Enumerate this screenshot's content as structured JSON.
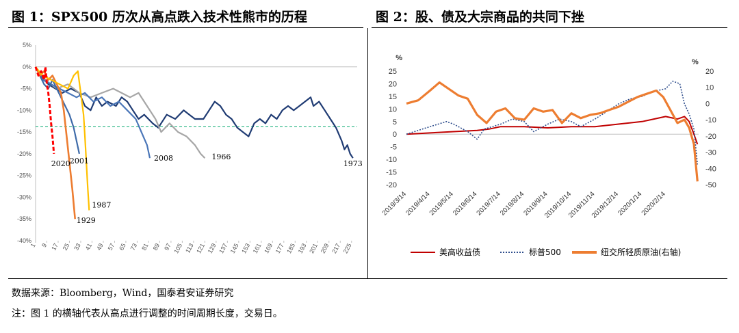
{
  "figure1": {
    "title": "图 1：SPX500 历次从高点跌入技术性熊市的历程",
    "chart_data": {
      "type": "line",
      "title": "图 1：SPX500 历次从高点跌入技术性熊市的历程",
      "xlabel": "",
      "ylabel": "",
      "xlim": [
        1,
        229
      ],
      "ylim": [
        -40,
        5
      ],
      "x_ticks": [
        "1",
        "9",
        "17",
        "25",
        "33",
        "41",
        "49",
        "57",
        "65",
        "73",
        "81",
        "89",
        "97",
        "105",
        "113",
        "121",
        "129",
        "137",
        "145",
        "153",
        "161",
        "169",
        "177",
        "185",
        "193",
        "201",
        "209",
        "217",
        "225"
      ],
      "y_ticks": [
        5,
        0,
        -5,
        -10,
        -15,
        -20,
        -25,
        -30,
        -35,
        -40
      ],
      "y_tick_labels": [
        "5%",
        "0%",
        "-5%",
        "-10%",
        "-15%",
        "-20%",
        "-25%",
        "-30%",
        "-35%",
        "-40%"
      ],
      "reference_line": {
        "y": -13.8,
        "color": "#00a86b",
        "style": "dashed"
      },
      "series": [
        {
          "name": "1973",
          "color": "#1f3b73",
          "width": 2.2,
          "points": [
            [
              1,
              0
            ],
            [
              5,
              -2
            ],
            [
              10,
              -4
            ],
            [
              15,
              -5
            ],
            [
              20,
              -6
            ],
            [
              26,
              -5
            ],
            [
              32,
              -6
            ],
            [
              36,
              -9
            ],
            [
              40,
              -10
            ],
            [
              44,
              -7
            ],
            [
              48,
              -9
            ],
            [
              52,
              -8
            ],
            [
              58,
              -9
            ],
            [
              62,
              -7
            ],
            [
              66,
              -8
            ],
            [
              70,
              -10
            ],
            [
              74,
              -12
            ],
            [
              78,
              -11
            ],
            [
              84,
              -13
            ],
            [
              88,
              -14
            ],
            [
              94,
              -11
            ],
            [
              100,
              -12
            ],
            [
              106,
              -10
            ],
            [
              110,
              -11
            ],
            [
              114,
              -12
            ],
            [
              120,
              -12
            ],
            [
              124,
              -10
            ],
            [
              128,
              -8
            ],
            [
              132,
              -9
            ],
            [
              136,
              -11
            ],
            [
              140,
              -12
            ],
            [
              144,
              -14
            ],
            [
              148,
              -15
            ],
            [
              152,
              -16
            ],
            [
              156,
              -13
            ],
            [
              160,
              -12
            ],
            [
              164,
              -13
            ],
            [
              168,
              -11
            ],
            [
              172,
              -12
            ],
            [
              176,
              -10
            ],
            [
              180,
              -9
            ],
            [
              184,
              -10
            ],
            [
              188,
              -9
            ],
            [
              192,
              -8
            ],
            [
              196,
              -7
            ],
            [
              198,
              -9
            ],
            [
              202,
              -8
            ],
            [
              206,
              -10
            ],
            [
              210,
              -12
            ],
            [
              214,
              -14
            ],
            [
              218,
              -17
            ],
            [
              220,
              -19
            ],
            [
              222,
              -18
            ],
            [
              224,
              -20
            ],
            [
              226,
              -21
            ]
          ],
          "end_label": "1973"
        },
        {
          "name": "1966",
          "color": "#a6a6a6",
          "width": 2.2,
          "points": [
            [
              1,
              0
            ],
            [
              8,
              -3
            ],
            [
              16,
              -5
            ],
            [
              24,
              -4
            ],
            [
              32,
              -6
            ],
            [
              40,
              -7
            ],
            [
              48,
              -6
            ],
            [
              56,
              -5
            ],
            [
              62,
              -6
            ],
            [
              68,
              -7
            ],
            [
              74,
              -6
            ],
            [
              80,
              -9
            ],
            [
              86,
              -12
            ],
            [
              90,
              -15
            ],
            [
              96,
              -13
            ],
            [
              102,
              -15
            ],
            [
              108,
              -16
            ],
            [
              114,
              -18
            ],
            [
              118,
              -20
            ],
            [
              121,
              -21
            ]
          ],
          "end_label": "1966"
        },
        {
          "name": "2008",
          "color": "#4a76b8",
          "width": 2.2,
          "points": [
            [
              1,
              0
            ],
            [
              6,
              -3
            ],
            [
              12,
              -4
            ],
            [
              18,
              -5
            ],
            [
              24,
              -6
            ],
            [
              30,
              -7
            ],
            [
              36,
              -6
            ],
            [
              42,
              -8
            ],
            [
              48,
              -7
            ],
            [
              54,
              -9
            ],
            [
              60,
              -8
            ],
            [
              66,
              -10
            ],
            [
              72,
              -12
            ],
            [
              76,
              -15
            ],
            [
              80,
              -18
            ],
            [
              82,
              -21
            ]
          ],
          "end_label": "2008"
        },
        {
          "name": "2001",
          "color": "#3d6aa8",
          "width": 2.2,
          "points": [
            [
              1,
              0
            ],
            [
              4,
              -2
            ],
            [
              7,
              -4
            ],
            [
              10,
              -5
            ],
            [
              13,
              -3
            ],
            [
              16,
              -5
            ],
            [
              19,
              -7
            ],
            [
              22,
              -9
            ],
            [
              25,
              -11
            ],
            [
              28,
              -14
            ],
            [
              30,
              -17
            ],
            [
              32,
              -20
            ]
          ],
          "end_label": "2001"
        },
        {
          "name": "1929",
          "color": "#ed7d31",
          "width": 2.6,
          "points": [
            [
              1,
              0
            ],
            [
              4,
              -2
            ],
            [
              7,
              -1
            ],
            [
              10,
              -3
            ],
            [
              13,
              -2
            ],
            [
              16,
              -4
            ],
            [
              19,
              -6
            ],
            [
              21,
              -10
            ],
            [
              23,
              -16
            ],
            [
              25,
              -22
            ],
            [
              27,
              -28
            ],
            [
              29,
              -35
            ]
          ],
          "end_label": "1929"
        },
        {
          "name": "1987",
          "color": "#ffc000",
          "width": 2.2,
          "points": [
            [
              1,
              0
            ],
            [
              6,
              -2
            ],
            [
              12,
              -3
            ],
            [
              18,
              -4
            ],
            [
              24,
              -5
            ],
            [
              28,
              -2
            ],
            [
              31,
              -1
            ],
            [
              33,
              -6
            ],
            [
              35,
              -11
            ],
            [
              36,
              -16
            ],
            [
              37,
              -22
            ],
            [
              38,
              -28
            ],
            [
              39,
              -33
            ]
          ],
          "end_label": "1987"
        },
        {
          "name": "2020",
          "color": "#ff0000",
          "width": 3,
          "dashed": true,
          "points": [
            [
              1,
              0
            ],
            [
              3,
              -2
            ],
            [
              5,
              -1
            ],
            [
              7,
              -3
            ],
            [
              8,
              0
            ],
            [
              9,
              -4
            ],
            [
              10,
              -6
            ],
            [
              11,
              -9
            ],
            [
              12,
              -13
            ],
            [
              13,
              -16
            ],
            [
              14,
              -20
            ]
          ],
          "end_label": "2020"
        }
      ]
    }
  },
  "figure2": {
    "title": "图 2：股、债及大宗商品的共同下挫",
    "chart_data": {
      "type": "line",
      "title": "图 2：股、债及大宗商品的共同下挫",
      "left_axis": {
        "unit": "%",
        "ylim": [
          -20,
          25
        ],
        "ticks": [
          25,
          20,
          15,
          10,
          5,
          0,
          -5,
          -10,
          -15,
          -20
        ]
      },
      "right_axis": {
        "unit": "%",
        "ylim": [
          -50,
          20
        ],
        "ticks": [
          20,
          10,
          0,
          -10,
          -20,
          -30,
          -40,
          -50
        ]
      },
      "x_tick_labels": [
        "2019/3/14",
        "2019/4/14",
        "2019/5/14",
        "2019/6/14",
        "2019/7/14",
        "2019/8/14",
        "2019/9/14",
        "2019/10/14",
        "2019/11/14",
        "2019/12/14",
        "2020/1/14",
        "2020/2/14"
      ],
      "x_range_months": [
        0,
        12.4
      ],
      "legend_position": "bottom",
      "series": [
        {
          "name": "美高收益债",
          "color": "#c00000",
          "style": "solid",
          "axis": "left",
          "points": [
            [
              0,
              0
            ],
            [
              1,
              0.5
            ],
            [
              2,
              1
            ],
            [
              3,
              1.5
            ],
            [
              3.5,
              2
            ],
            [
              4,
              3
            ],
            [
              5,
              3
            ],
            [
              6,
              2.5
            ],
            [
              7,
              3
            ],
            [
              8,
              3
            ],
            [
              9,
              4
            ],
            [
              10,
              5
            ],
            [
              10.5,
              6
            ],
            [
              11,
              7
            ],
            [
              11.5,
              6
            ],
            [
              11.8,
              7
            ],
            [
              12,
              5
            ],
            [
              12.2,
              0
            ],
            [
              12.35,
              -4
            ]
          ]
        },
        {
          "name": "标普500",
          "color": "#2e4d8c",
          "style": "dotted",
          "axis": "left",
          "points": [
            [
              0,
              0
            ],
            [
              1,
              3
            ],
            [
              1.7,
              5
            ],
            [
              2,
              4
            ],
            [
              2.6,
              1
            ],
            [
              3,
              -2
            ],
            [
              3.3,
              2
            ],
            [
              4,
              4
            ],
            [
              4.5,
              6
            ],
            [
              5,
              5
            ],
            [
              5.4,
              1
            ],
            [
              6,
              4
            ],
            [
              6.5,
              6
            ],
            [
              7,
              5
            ],
            [
              7.4,
              3
            ],
            [
              8,
              6
            ],
            [
              8.5,
              9
            ],
            [
              9,
              12
            ],
            [
              9.5,
              14
            ],
            [
              10,
              15
            ],
            [
              10.5,
              17
            ],
            [
              11,
              18
            ],
            [
              11.3,
              21
            ],
            [
              11.6,
              20
            ],
            [
              11.8,
              12
            ],
            [
              12,
              8
            ],
            [
              12.2,
              2
            ],
            [
              12.35,
              -12
            ]
          ]
        },
        {
          "name": "纽交所轻质原油(右轴)",
          "color": "#ed7d31",
          "style": "solid",
          "axis": "right",
          "points": [
            [
              0,
              0
            ],
            [
              0.5,
              2
            ],
            [
              1,
              8
            ],
            [
              1.4,
              13
            ],
            [
              1.8,
              9
            ],
            [
              2.2,
              5
            ],
            [
              2.6,
              3
            ],
            [
              3,
              -7
            ],
            [
              3.4,
              -12
            ],
            [
              3.8,
              -5
            ],
            [
              4.2,
              -3
            ],
            [
              4.6,
              -9
            ],
            [
              5,
              -10
            ],
            [
              5.4,
              -3
            ],
            [
              5.8,
              -5
            ],
            [
              6.2,
              -4
            ],
            [
              6.6,
              -12
            ],
            [
              7,
              -6
            ],
            [
              7.4,
              -9
            ],
            [
              7.8,
              -7
            ],
            [
              8.2,
              -6
            ],
            [
              8.6,
              -4
            ],
            [
              9,
              -2
            ],
            [
              9.4,
              1
            ],
            [
              9.8,
              4
            ],
            [
              10.2,
              6
            ],
            [
              10.6,
              8
            ],
            [
              10.9,
              4
            ],
            [
              11.2,
              -4
            ],
            [
              11.5,
              -12
            ],
            [
              11.8,
              -10
            ],
            [
              12,
              -15
            ],
            [
              12.2,
              -25
            ],
            [
              12.35,
              -48
            ]
          ]
        }
      ]
    }
  },
  "source_note": "数据来源：Bloomberg，Wind，国泰君安证券研究",
  "footnote": "注：图 1 的横轴代表从高点进行调整的时间周期长度，交易日。"
}
